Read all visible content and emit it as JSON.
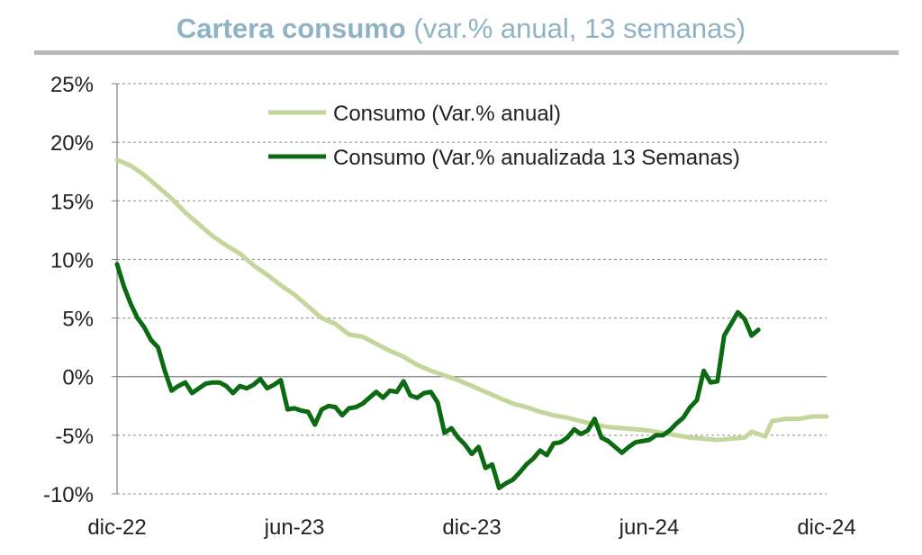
{
  "title": {
    "bold": "Cartera consumo",
    "rest": "(var.% anual, 13 semanas)"
  },
  "chart_data": {
    "type": "line",
    "title": "Cartera consumo (var.% anual, 13 semanas)",
    "xlabel": "",
    "ylabel": "",
    "ylim": [
      -10,
      25
    ],
    "y_ticks": [
      "25%",
      "20%",
      "15%",
      "10%",
      "5%",
      "0%",
      "-5%",
      "-10%"
    ],
    "x_ticks": [
      "dic-22",
      "jun-23",
      "dic-23",
      "jun-24",
      "dic-24"
    ],
    "x_tick_positions": [
      0,
      26,
      52,
      78,
      104
    ],
    "grid": true,
    "legend_position": "top-right",
    "series": [
      {
        "name": "Consumo (Var.% anual)",
        "color": "#c3d69b",
        "points": [
          [
            0,
            18.5
          ],
          [
            2,
            18.0
          ],
          [
            4,
            17.2
          ],
          [
            6,
            16.2
          ],
          [
            8,
            15.2
          ],
          [
            10,
            14.0
          ],
          [
            12,
            13.0
          ],
          [
            14,
            12.0
          ],
          [
            16,
            11.2
          ],
          [
            18,
            10.5
          ],
          [
            20,
            9.5
          ],
          [
            22,
            8.7
          ],
          [
            24,
            7.8
          ],
          [
            26,
            7.0
          ],
          [
            28,
            6.0
          ],
          [
            30,
            5.0
          ],
          [
            32,
            4.5
          ],
          [
            34,
            3.6
          ],
          [
            36,
            3.4
          ],
          [
            38,
            2.8
          ],
          [
            40,
            2.2
          ],
          [
            42,
            1.7
          ],
          [
            44,
            1.0
          ],
          [
            46,
            0.5
          ],
          [
            48,
            0.1
          ],
          [
            50,
            -0.3
          ],
          [
            52,
            -0.8
          ],
          [
            54,
            -1.3
          ],
          [
            56,
            -1.8
          ],
          [
            58,
            -2.3
          ],
          [
            60,
            -2.6
          ],
          [
            62,
            -3.0
          ],
          [
            64,
            -3.3
          ],
          [
            66,
            -3.5
          ],
          [
            68,
            -3.8
          ],
          [
            70,
            -4.1
          ],
          [
            72,
            -4.3
          ],
          [
            74,
            -4.4
          ],
          [
            76,
            -4.5
          ],
          [
            78,
            -4.6
          ],
          [
            80,
            -4.8
          ],
          [
            82,
            -5.0
          ],
          [
            84,
            -5.2
          ],
          [
            86,
            -5.3
          ],
          [
            88,
            -5.4
          ],
          [
            90,
            -5.3
          ],
          [
            92,
            -5.2
          ],
          [
            93,
            -4.7
          ],
          [
            95,
            -5.1
          ],
          [
            96,
            -3.8
          ],
          [
            98,
            -3.6
          ],
          [
            100,
            -3.6
          ],
          [
            102,
            -3.4
          ],
          [
            104,
            -3.4
          ]
        ]
      },
      {
        "name": "Consumo (Var.% anualizada 13 Semanas)",
        "color": "#0c6b12",
        "points": [
          [
            0,
            9.6
          ],
          [
            1,
            7.7
          ],
          [
            2,
            6.2
          ],
          [
            3,
            5.0
          ],
          [
            4,
            4.2
          ],
          [
            5,
            3.1
          ],
          [
            6,
            2.5
          ],
          [
            7,
            0.5
          ],
          [
            8,
            -1.2
          ],
          [
            9,
            -0.8
          ],
          [
            10,
            -0.5
          ],
          [
            11,
            -1.4
          ],
          [
            12,
            -1.0
          ],
          [
            13,
            -0.6
          ],
          [
            14,
            -0.5
          ],
          [
            15,
            -0.5
          ],
          [
            16,
            -0.8
          ],
          [
            17,
            -1.4
          ],
          [
            18,
            -0.8
          ],
          [
            19,
            -1.0
          ],
          [
            20,
            -0.7
          ],
          [
            21,
            -0.2
          ],
          [
            22,
            -1.0
          ],
          [
            23,
            -0.7
          ],
          [
            24,
            -0.3
          ],
          [
            25,
            -2.8
          ],
          [
            26,
            -2.7
          ],
          [
            27,
            -2.9
          ],
          [
            28,
            -3.0
          ],
          [
            29,
            -4.1
          ],
          [
            30,
            -2.8
          ],
          [
            31,
            -2.5
          ],
          [
            32,
            -2.6
          ],
          [
            33,
            -3.3
          ],
          [
            34,
            -2.7
          ],
          [
            35,
            -2.6
          ],
          [
            36,
            -2.3
          ],
          [
            37,
            -1.8
          ],
          [
            38,
            -1.3
          ],
          [
            39,
            -1.8
          ],
          [
            40,
            -1.2
          ],
          [
            41,
            -1.3
          ],
          [
            42,
            -0.4
          ],
          [
            43,
            -1.6
          ],
          [
            44,
            -1.8
          ],
          [
            45,
            -1.4
          ],
          [
            46,
            -1.3
          ],
          [
            47,
            -2.2
          ],
          [
            48,
            -4.8
          ],
          [
            49,
            -4.4
          ],
          [
            50,
            -5.2
          ],
          [
            51,
            -5.8
          ],
          [
            52,
            -6.6
          ],
          [
            53,
            -6.0
          ],
          [
            54,
            -7.8
          ],
          [
            55,
            -7.5
          ],
          [
            56,
            -9.5
          ],
          [
            57,
            -9.1
          ],
          [
            58,
            -8.8
          ],
          [
            59,
            -8.2
          ],
          [
            60,
            -7.5
          ],
          [
            61,
            -7.0
          ],
          [
            62,
            -6.3
          ],
          [
            63,
            -6.7
          ],
          [
            64,
            -5.7
          ],
          [
            65,
            -5.6
          ],
          [
            66,
            -5.2
          ],
          [
            67,
            -4.5
          ],
          [
            68,
            -4.9
          ],
          [
            69,
            -4.6
          ],
          [
            70,
            -3.6
          ],
          [
            71,
            -5.2
          ],
          [
            72,
            -5.5
          ],
          [
            73,
            -6.0
          ],
          [
            74,
            -6.5
          ],
          [
            75,
            -6.0
          ],
          [
            76,
            -5.6
          ],
          [
            77,
            -5.5
          ],
          [
            78,
            -5.4
          ],
          [
            79,
            -5.0
          ],
          [
            80,
            -5.0
          ],
          [
            81,
            -4.6
          ],
          [
            82,
            -4.0
          ],
          [
            83,
            -3.5
          ],
          [
            84,
            -2.6
          ],
          [
            85,
            -2.0
          ],
          [
            86,
            0.5
          ],
          [
            87,
            -0.5
          ],
          [
            88,
            -0.4
          ],
          [
            89,
            3.5
          ],
          [
            90,
            4.5
          ],
          [
            91,
            5.5
          ],
          [
            92,
            4.9
          ],
          [
            93,
            3.5
          ],
          [
            94,
            4.0
          ]
        ]
      }
    ]
  }
}
